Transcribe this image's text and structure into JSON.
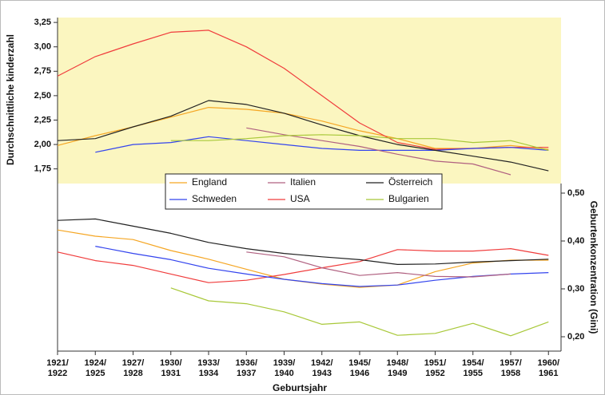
{
  "chart_data": {
    "type": "line",
    "ylabel": "Durchschnittliche kinderzahl",
    "y2label": "Geburtenkonzentration (Gini)",
    "xlabel": "Geburtsjahr",
    "x": [
      1921,
      1924,
      1927,
      1930,
      1933,
      1936,
      1939,
      1942,
      1945,
      1948,
      1951,
      1954,
      1957,
      1960
    ],
    "xlim": [
      1921,
      1961
    ],
    "xticks": [
      {
        "value": 1921,
        "label": "1921/1922"
      },
      {
        "value": 1924,
        "label": "1924/1925"
      },
      {
        "value": 1927,
        "label": "1927/1928"
      },
      {
        "value": 1930,
        "label": "1930/1931"
      },
      {
        "value": 1933,
        "label": "1933/1934"
      },
      {
        "value": 1936,
        "label": "1936/1937"
      },
      {
        "value": 1939,
        "label": "1939/1940"
      },
      {
        "value": 1942,
        "label": "1942/1943"
      },
      {
        "value": 1945,
        "label": "1945/1946"
      },
      {
        "value": 1948,
        "label": "1948/1949"
      },
      {
        "value": 1951,
        "label": "1951/1952"
      },
      {
        "value": 1954,
        "label": "1954/1955"
      },
      {
        "value": 1957,
        "label": "1957/1958"
      },
      {
        "value": 1960,
        "label": "1960/1961"
      }
    ],
    "ylim": [
      1.6,
      3.3
    ],
    "yticks": [
      {
        "value": 1.75,
        "label": "1,75"
      },
      {
        "value": 2.0,
        "label": "2,00"
      },
      {
        "value": 2.25,
        "label": "2,25"
      },
      {
        "value": 2.5,
        "label": "2,50"
      },
      {
        "value": 2.75,
        "label": "2,75"
      },
      {
        "value": 3.0,
        "label": "3,00"
      },
      {
        "value": 3.25,
        "label": "3,25"
      }
    ],
    "y2lim": [
      0.17,
      0.52
    ],
    "y2ticks": [
      {
        "value": 0.2,
        "label": "0,20"
      },
      {
        "value": 0.3,
        "label": "0,30"
      },
      {
        "value": 0.4,
        "label": "0,40"
      },
      {
        "value": 0.5,
        "label": "0,50"
      }
    ],
    "series": [
      {
        "name": "England",
        "color": "#f5a623",
        "values": [
          1.99,
          2.09,
          2.18,
          2.28,
          2.38,
          2.36,
          2.32,
          2.24,
          2.14,
          2.06,
          1.96,
          1.96,
          1.99,
          1.95
        ],
        "values_y2": [
          0.423,
          0.41,
          0.403,
          0.38,
          0.362,
          0.341,
          0.32,
          0.31,
          0.303,
          0.308,
          0.336,
          0.354,
          0.36,
          0.36
        ]
      },
      {
        "name": "USA",
        "color": "#f03c3c",
        "values": [
          2.7,
          2.9,
          3.03,
          3.15,
          3.17,
          3.0,
          2.78,
          2.5,
          2.22,
          2.02,
          1.95,
          1.96,
          1.97,
          1.97
        ],
        "values_y2": [
          0.377,
          0.359,
          0.349,
          0.331,
          0.313,
          0.318,
          0.33,
          0.344,
          0.357,
          0.382,
          0.379,
          0.379,
          0.384,
          0.37
        ]
      },
      {
        "name": "Schweden",
        "color": "#3344ee",
        "values": [
          null,
          1.92,
          2.0,
          2.02,
          2.08,
          2.04,
          2.0,
          1.96,
          1.94,
          1.94,
          1.94,
          1.96,
          1.97,
          1.94
        ],
        "values_y2": [
          null,
          0.389,
          0.374,
          0.361,
          0.343,
          0.331,
          0.32,
          0.311,
          0.305,
          0.308,
          0.318,
          0.326,
          0.331,
          0.334
        ]
      },
      {
        "name": "Österreich",
        "color": "#222222",
        "values": [
          2.04,
          2.06,
          2.18,
          2.29,
          2.45,
          2.41,
          2.32,
          2.2,
          2.09,
          2.0,
          1.94,
          1.88,
          1.82,
          1.73
        ],
        "values_y2": [
          0.443,
          0.446,
          0.431,
          0.416,
          0.397,
          0.384,
          0.374,
          0.367,
          0.361,
          0.351,
          0.352,
          0.356,
          0.359,
          0.362
        ]
      },
      {
        "name": "Italien",
        "color": "#b06080",
        "values": [
          null,
          null,
          null,
          null,
          null,
          2.17,
          2.1,
          2.04,
          1.98,
          1.9,
          1.83,
          1.8,
          1.69,
          null
        ],
        "values_y2": [
          null,
          null,
          null,
          null,
          null,
          0.377,
          0.367,
          0.344,
          0.328,
          0.334,
          0.326,
          0.325,
          0.331,
          null
        ]
      },
      {
        "name": "Bulgarien",
        "color": "#a8c838",
        "values": [
          null,
          null,
          null,
          2.04,
          2.04,
          2.06,
          2.09,
          2.1,
          2.09,
          2.06,
          2.06,
          2.02,
          2.04,
          1.94
        ],
        "values_y2": [
          null,
          null,
          null,
          0.302,
          0.275,
          0.269,
          0.252,
          0.226,
          0.231,
          0.203,
          0.207,
          0.228,
          0.202,
          0.231
        ]
      }
    ]
  }
}
